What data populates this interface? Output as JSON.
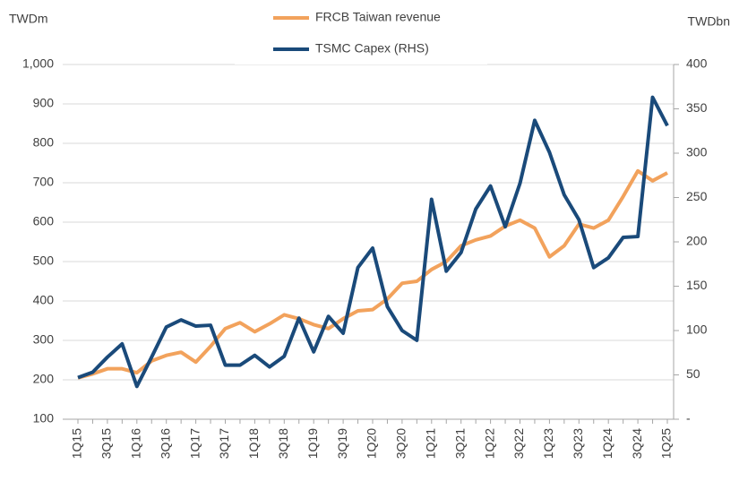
{
  "chart_data": {
    "type": "line",
    "y_label": "TWDm",
    "y2_label": "TWDbn",
    "categories": [
      "1Q15",
      null,
      "3Q15",
      null,
      "1Q16",
      null,
      "3Q16",
      null,
      "1Q17",
      null,
      "3Q17",
      null,
      "1Q18",
      null,
      "3Q18",
      null,
      "1Q19",
      null,
      "3Q19",
      null,
      "1Q20",
      null,
      "3Q20",
      null,
      "1Q21",
      null,
      "3Q21",
      null,
      "1Q22",
      null,
      "3Q22",
      null,
      "1Q23",
      null,
      "3Q23",
      null,
      "1Q24",
      null,
      "3Q24",
      null,
      "1Q25"
    ],
    "series": [
      {
        "name": "FRCB Taiwan revenue",
        "color": "#f2a25c",
        "axis": "y",
        "values": [
          205,
          215,
          228,
          228,
          218,
          248,
          262,
          270,
          245,
          285,
          330,
          345,
          322,
          342,
          365,
          355,
          340,
          330,
          355,
          375,
          378,
          405,
          445,
          450,
          480,
          500,
          540,
          555,
          565,
          590,
          605,
          585,
          512,
          540,
          595,
          585,
          605,
          665,
          730,
          705,
          725
        ]
      },
      {
        "name": "TSMC Capex (RHS)",
        "color": "#1a4a7a",
        "axis": "y2",
        "values": [
          47,
          53,
          70,
          85,
          37,
          70,
          104,
          112,
          105,
          106,
          61,
          61,
          72,
          59,
          71,
          114,
          76,
          116,
          97,
          171,
          193,
          127,
          100,
          89,
          248,
          167,
          188,
          237,
          263,
          217,
          266,
          337,
          301,
          253,
          225,
          171,
          182,
          205,
          206,
          363,
          331
        ]
      }
    ],
    "ylim": [
      100,
      1000
    ],
    "yticks": [
      100,
      200,
      300,
      400,
      500,
      600,
      700,
      800,
      900,
      {
        "value": 1000,
        "label": "1,000"
      }
    ],
    "y2lim": [
      0,
      400
    ],
    "y2ticks": [
      {
        "value": 0,
        "label": "-"
      },
      50,
      100,
      150,
      200,
      250,
      300,
      350,
      400
    ],
    "grid": true,
    "legend": "top"
  }
}
